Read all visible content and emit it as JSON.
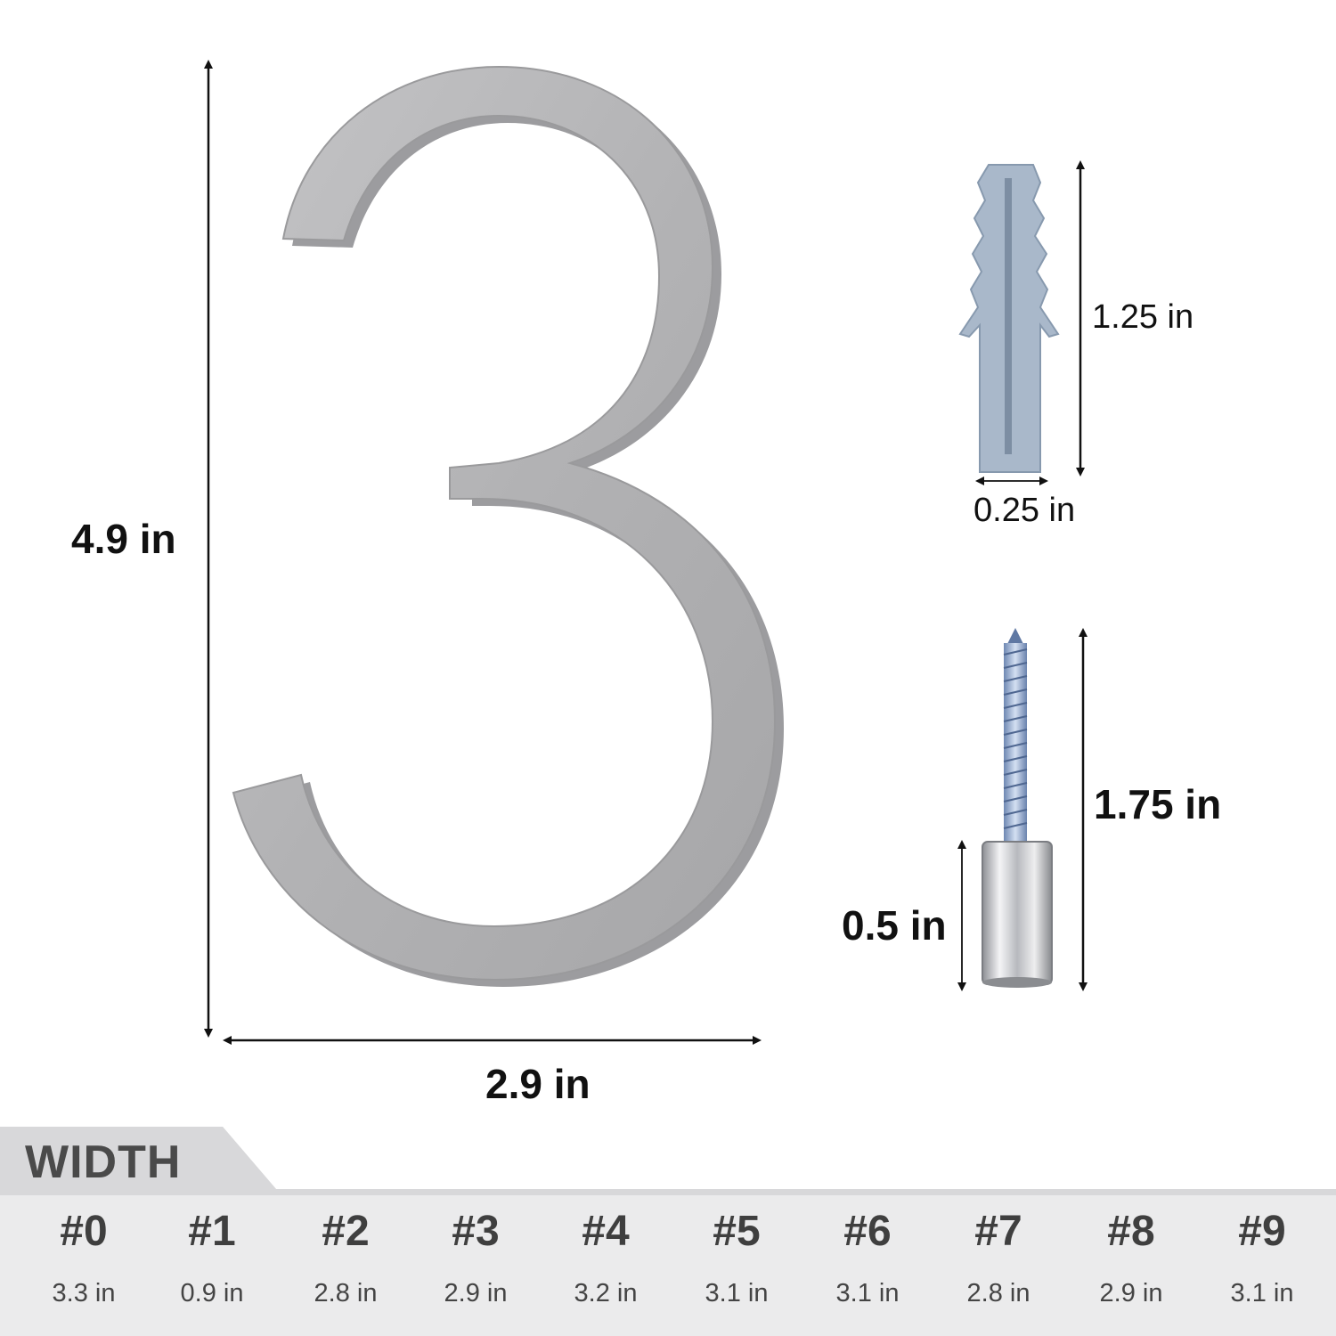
{
  "product": {
    "digit": "3",
    "height_label": "4.9 in",
    "width_label": "2.9 in",
    "finish_color": "#b4b4b6"
  },
  "anchor": {
    "length_label": "1.25  in",
    "diameter_label": "0.25 in",
    "color": "#a6b6c8"
  },
  "screw": {
    "length_label": "1.75 in",
    "standoff_label": "0.5 in"
  },
  "width_table": {
    "title": "WIDTH",
    "items": [
      {
        "num": "#0",
        "value": "3.3 in"
      },
      {
        "num": "#1",
        "value": "0.9 in"
      },
      {
        "num": "#2",
        "value": "2.8 in"
      },
      {
        "num": "#3",
        "value": "2.9 in"
      },
      {
        "num": "#4",
        "value": "3.2 in"
      },
      {
        "num": "#5",
        "value": "3.1 in"
      },
      {
        "num": "#6",
        "value": "3.1 in"
      },
      {
        "num": "#7",
        "value": "2.8 in"
      },
      {
        "num": "#8",
        "value": "2.9 in"
      },
      {
        "num": "#9",
        "value": "3.1 in"
      }
    ]
  }
}
